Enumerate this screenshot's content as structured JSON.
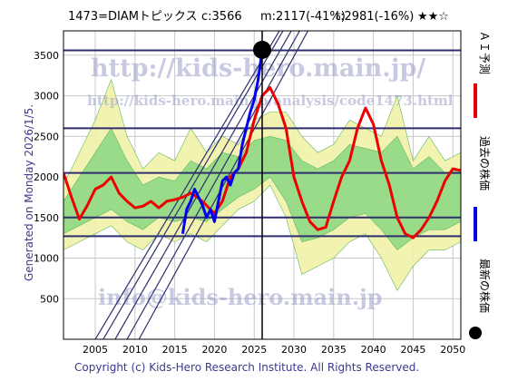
{
  "header": {
    "code_name": "1473=DIAMトピックス",
    "current": "c:3566",
    "min": "m:2117(-41%)",
    "target": "t:2981(-16%)",
    "stars": "★★☆"
  },
  "side_note": "Generated on Monday 2026/1/5.",
  "footer": "Copyright (c) Kids-Hero Research Institute. All Rights Reserved.",
  "watermarks": {
    "top": "http://kids-hero.main.jp/",
    "mid": "http://kids-hero.main.jp/analysis/code1473.html",
    "bottom": "info@kids-hero.main.jp"
  },
  "legend": {
    "prediction": "ＡＩ予測",
    "past": "過去の株価",
    "latest": "最新の株価"
  },
  "colors": {
    "prediction": "#ee0000",
    "past": "#0000ee",
    "latest": "#000000",
    "band_outer": "#f2f2a8",
    "band_inner": "#7bd37b",
    "hline": "#2e2e6e",
    "trend": "#2e2e6e",
    "grid": "#c8c8c8",
    "watermark": "#9aa0c8"
  },
  "chart_data": {
    "type": "line",
    "title": "1473=DIAMトピックス",
    "xlabel": "",
    "ylabel": "",
    "xlim": [
      2001,
      2051
    ],
    "ylim": [
      0,
      3800
    ],
    "x_ticks": [
      2005,
      2010,
      2015,
      2020,
      2025,
      2030,
      2035,
      2040,
      2045,
      2050
    ],
    "y_ticks": [
      500,
      1000,
      1500,
      2000,
      2500,
      3000,
      3500
    ],
    "grid": true,
    "horizontal_lines": [
      1270,
      1500,
      2050,
      2600,
      3560
    ],
    "vertical_line_x": 2026,
    "trend_lines": [
      {
        "x": [
          2005,
          2030
        ],
        "y": [
          0,
          4100
        ]
      },
      {
        "x": [
          2006,
          2031
        ],
        "y": [
          0,
          4200
        ]
      },
      {
        "x": [
          2007.5,
          2032
        ],
        "y": [
          0,
          4200
        ]
      },
      {
        "x": [
          2009,
          2033
        ],
        "y": [
          0,
          4200
        ]
      },
      {
        "x": [
          2010.5,
          2034
        ],
        "y": [
          0,
          4200
        ]
      }
    ],
    "band_outer": {
      "x": [
        2001,
        2003,
        2005,
        2007,
        2009,
        2011,
        2013,
        2015,
        2017,
        2019,
        2021,
        2023,
        2025,
        2027,
        2029,
        2031,
        2033,
        2035,
        2037,
        2039,
        2041,
        2043,
        2045,
        2047,
        2049,
        2051
      ],
      "upper": [
        1900,
        2300,
        2700,
        3200,
        2500,
        2100,
        2300,
        2200,
        2600,
        2300,
        2500,
        2400,
        2700,
        2800,
        2800,
        2500,
        2300,
        2400,
        2700,
        2600,
        2500,
        3000,
        2200,
        2500,
        2200,
        2300
      ],
      "lower": [
        1100,
        1200,
        1300,
        1400,
        1200,
        1100,
        1300,
        1200,
        1300,
        1200,
        1400,
        1600,
        1700,
        1900,
        1500,
        800,
        900,
        1000,
        1200,
        1300,
        1000,
        600,
        900,
        1100,
        1100,
        1200
      ]
    },
    "band_inner": {
      "x": [
        2001,
        2003,
        2005,
        2007,
        2009,
        2011,
        2013,
        2015,
        2017,
        2019,
        2021,
        2023,
        2025,
        2027,
        2029,
        2031,
        2033,
        2035,
        2037,
        2039,
        2041,
        2043,
        2045,
        2047,
        2049,
        2051
      ],
      "upper": [
        1700,
        2000,
        2300,
        2600,
        2200,
        1900,
        2000,
        1950,
        2200,
        2100,
        2300,
        2250,
        2450,
        2500,
        2450,
        2200,
        2100,
        2200,
        2400,
        2350,
        2300,
        2500,
        2100,
        2250,
        2050,
        2100
      ],
      "lower": [
        1300,
        1400,
        1500,
        1600,
        1450,
        1350,
        1500,
        1450,
        1500,
        1450,
        1600,
        1750,
        1850,
        2000,
        1700,
        1200,
        1250,
        1350,
        1500,
        1550,
        1350,
        1100,
        1250,
        1350,
        1350,
        1450
      ]
    },
    "series": [
      {
        "name": "ＡＩ予測",
        "x": [
          2001,
          2002,
          2003,
          2004,
          2005,
          2006,
          2007,
          2008,
          2009,
          2010,
          2011,
          2012,
          2013,
          2014,
          2015,
          2016,
          2017,
          2018,
          2019,
          2020,
          2021,
          2022,
          2023,
          2024,
          2025,
          2026,
          2027,
          2028,
          2029,
          2030,
          2031,
          2032,
          2033,
          2034,
          2035,
          2036,
          2037,
          2038,
          2039,
          2040,
          2041,
          2042,
          2043,
          2044,
          2045,
          2046,
          2047,
          2048,
          2049,
          2050,
          2051
        ],
        "values": [
          2050,
          1750,
          1480,
          1650,
          1850,
          1900,
          2000,
          1800,
          1700,
          1620,
          1640,
          1700,
          1620,
          1700,
          1720,
          1750,
          1800,
          1740,
          1650,
          1550,
          1700,
          2000,
          2100,
          2300,
          2700,
          3000,
          3100,
          2900,
          2600,
          2000,
          1700,
          1450,
          1350,
          1380,
          1700,
          2000,
          2200,
          2600,
          2850,
          2650,
          2200,
          1900,
          1500,
          1300,
          1250,
          1350,
          1500,
          1700,
          1950,
          2100,
          2080
        ]
      },
      {
        "name": "過去の株価",
        "x": [
          2016.0,
          2016.5,
          2017.0,
          2017.5,
          2018.0,
          2018.5,
          2019.0,
          2019.5,
          2020.0,
          2020.5,
          2021.0,
          2021.5,
          2022.0,
          2022.5,
          2023.0,
          2023.5,
          2024.0,
          2024.5,
          2025.0,
          2025.5,
          2026.0
        ],
        "values": [
          1300,
          1600,
          1700,
          1850,
          1750,
          1650,
          1500,
          1600,
          1450,
          1700,
          1950,
          2000,
          1900,
          2050,
          2100,
          2400,
          2600,
          2800,
          2950,
          3200,
          3566
        ]
      }
    ],
    "latest_point": {
      "x": 2026,
      "y": 3566
    }
  }
}
